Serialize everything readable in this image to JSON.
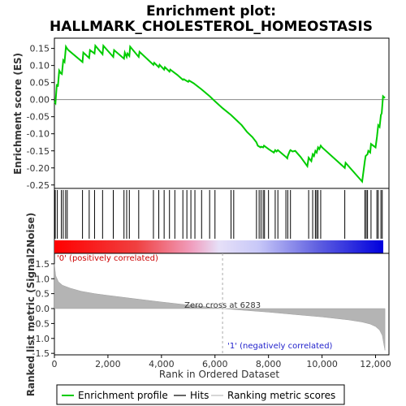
{
  "chart_data": {
    "type": "line",
    "title_line1": "Enrichment plot:",
    "title_line2": "HALLMARK_CHOLESTEROL_HOMEOSTASIS",
    "es_panel": {
      "ylabel": "Enrichment score (ES)",
      "ylim": [
        -0.26,
        0.18
      ],
      "yticks": [
        0.15,
        0.1,
        0.05,
        0.0,
        -0.05,
        -0.1,
        -0.15,
        -0.2,
        -0.25
      ],
      "ytick_labels": [
        "0.15",
        "0.10",
        "0.05",
        "0.00",
        "-0.05",
        "-0.10",
        "-0.15",
        "-0.20",
        "-0.25"
      ],
      "line_color": "#00cc00",
      "x": [
        0,
        40,
        90,
        130,
        180,
        230,
        280,
        330,
        380,
        430,
        470,
        520,
        1050,
        1080,
        1300,
        1330,
        1500,
        1530,
        1800,
        1830,
        2200,
        2230,
        2600,
        2630,
        2700,
        2730,
        2800,
        2830,
        3150,
        3180,
        3700,
        3730,
        3900,
        3930,
        4100,
        4130,
        4300,
        4330,
        4600,
        4800,
        4830,
        5000,
        5030,
        5200,
        5500,
        5800,
        6000,
        6283,
        6600,
        6800,
        7000,
        7200,
        7400,
        7550,
        7600,
        7700,
        7720,
        7800,
        7830,
        8000,
        8100,
        8200,
        8250,
        8300,
        8350,
        8500,
        8650,
        8700,
        8720,
        8800,
        8820,
        8900,
        9000,
        9200,
        9450,
        9500,
        9600,
        9650,
        9700,
        9750,
        9800,
        9850,
        9900,
        9950,
        10000,
        10850,
        10880,
        11500,
        11600,
        11630,
        11700,
        11730,
        11800,
        11830,
        12000,
        12050,
        12100,
        12150,
        12200,
        12230,
        12280,
        12350
      ],
      "es": [
        -0.005,
        -0.01,
        0.045,
        0.038,
        0.085,
        0.078,
        0.075,
        0.115,
        0.11,
        0.155,
        0.15,
        0.145,
        0.11,
        0.138,
        0.122,
        0.145,
        0.135,
        0.158,
        0.133,
        0.158,
        0.125,
        0.145,
        0.12,
        0.138,
        0.125,
        0.135,
        0.128,
        0.155,
        0.125,
        0.14,
        0.102,
        0.108,
        0.095,
        0.102,
        0.088,
        0.095,
        0.082,
        0.088,
        0.072,
        0.058,
        0.06,
        0.052,
        0.056,
        0.048,
        0.03,
        0.01,
        -0.005,
        -0.025,
        -0.045,
        -0.06,
        -0.075,
        -0.095,
        -0.11,
        -0.125,
        -0.135,
        -0.14,
        -0.138,
        -0.14,
        -0.135,
        -0.145,
        -0.15,
        -0.155,
        -0.148,
        -0.152,
        -0.148,
        -0.158,
        -0.168,
        -0.172,
        -0.165,
        -0.15,
        -0.148,
        -0.152,
        -0.15,
        -0.168,
        -0.195,
        -0.17,
        -0.18,
        -0.16,
        -0.165,
        -0.15,
        -0.155,
        -0.14,
        -0.145,
        -0.135,
        -0.14,
        -0.2,
        -0.185,
        -0.24,
        -0.18,
        -0.165,
        -0.16,
        -0.15,
        -0.155,
        -0.13,
        -0.14,
        -0.11,
        -0.075,
        -0.08,
        -0.045,
        -0.04,
        0.01,
        0.005
      ],
      "hits": [
        30,
        110,
        260,
        330,
        420,
        480,
        1050,
        1300,
        1500,
        1800,
        2200,
        2600,
        2700,
        2800,
        3150,
        3700,
        3900,
        4100,
        4300,
        4500,
        4800,
        4950,
        5100,
        5250,
        5500,
        5800,
        6000,
        6600,
        6700,
        7550,
        7650,
        7720,
        7800,
        7850,
        8000,
        8250,
        8350,
        8650,
        8720,
        8820,
        9500,
        9650,
        9750,
        9800,
        9850,
        9950,
        10850,
        11600,
        11650,
        11700,
        11830,
        12050,
        12100,
        12200,
        12250
      ]
    },
    "rank_panel": {
      "ylabel": "Ranked list metric (Signal2Noise)",
      "xlabel": "Rank in Ordered Dataset",
      "xlim": [
        0,
        12500
      ],
      "ylim": [
        -1.55,
        1.85
      ],
      "xticks": [
        0,
        2000,
        4000,
        6000,
        8000,
        10000,
        12000
      ],
      "xtick_labels": [
        "0",
        "2,000",
        "4,000",
        "6,000",
        "8,000",
        "10,000",
        "12,000"
      ],
      "yticks": [
        1.5,
        1.0,
        0.5,
        0.0,
        -0.5,
        -1.0,
        -1.5
      ],
      "ytick_labels": [
        "1.5",
        "1.0",
        "0.5",
        "0.0",
        "-0.5",
        "-1.0",
        "-1.5"
      ],
      "metric_x": [
        0,
        50,
        150,
        300,
        600,
        1000,
        1500,
        2000,
        3000,
        4000,
        5000,
        6283,
        7000,
        8000,
        9000,
        10000,
        11000,
        11500,
        11800,
        12000,
        12150,
        12250,
        12300,
        12350
      ],
      "metric_y": [
        1.5,
        1.1,
        0.9,
        0.78,
        0.68,
        0.58,
        0.5,
        0.44,
        0.33,
        0.22,
        0.12,
        0.0,
        -0.05,
        -0.12,
        -0.2,
        -0.28,
        -0.38,
        -0.45,
        -0.52,
        -0.6,
        -0.72,
        -0.9,
        -1.15,
        -1.4
      ],
      "zero_cross_label": "Zero cross at 6283",
      "zero_cross_x": 6283,
      "pos_label": "'0' (positively correlated)",
      "neg_label": "'1' (negatively correlated)",
      "n_genes": 12350
    },
    "legend": [
      {
        "label": "Enrichment profile",
        "color": "#00cc00"
      },
      {
        "label": "Hits",
        "color": "#000000"
      },
      {
        "label": "Ranking metric scores",
        "color": "#bbbbbb"
      }
    ]
  }
}
